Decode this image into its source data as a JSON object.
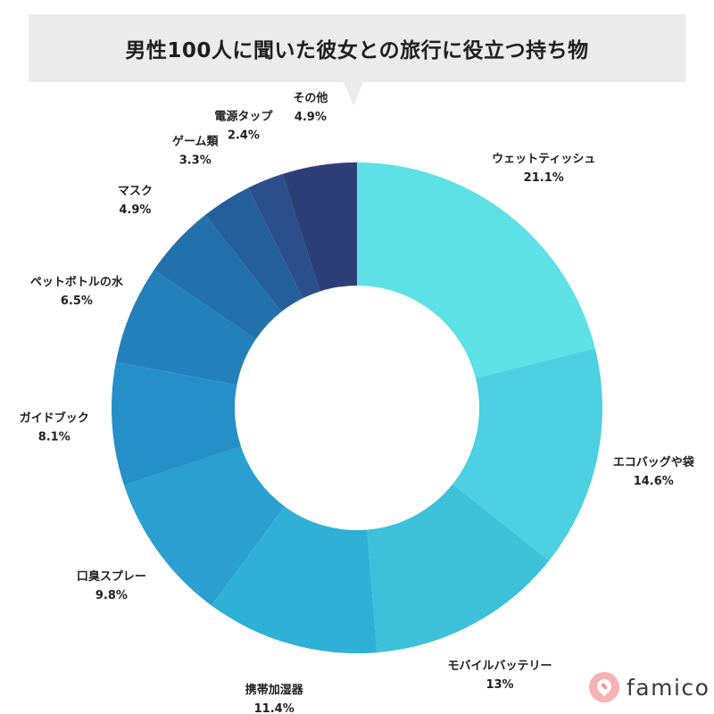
{
  "title": "男性100人に聞いた彼女との旅行に役立つ持ち物",
  "brand": {
    "name": "famico",
    "color": "#f6b3b1"
  },
  "chart_data": {
    "type": "pie",
    "variant": "donut",
    "unit": "%",
    "title": "男性100人に聞いた彼女との旅行に役立つ持ち物",
    "slices": [
      {
        "label": "ウェットティッシュ",
        "value": 21.1,
        "value_label": "21.1%",
        "color": "#5de0e6"
      },
      {
        "label": "エコバッグや袋",
        "value": 14.6,
        "value_label": "14.6%",
        "color": "#4dd0e1"
      },
      {
        "label": "モバイルバッテリー",
        "value": 13,
        "value_label": "13%",
        "color": "#3cc1d9"
      },
      {
        "label": "携帯加湿器",
        "value": 11.4,
        "value_label": "11.4%",
        "color": "#2fb0d6"
      },
      {
        "label": "口臭スプレー",
        "value": 9.8,
        "value_label": "9.8%",
        "color": "#2a9fd0"
      },
      {
        "label": "ガイドブック",
        "value": 8.1,
        "value_label": "8.1%",
        "color": "#2590c7"
      },
      {
        "label": "ペットボトルの水",
        "value": 6.5,
        "value_label": "6.5%",
        "color": "#2380ba"
      },
      {
        "label": "マスク",
        "value": 4.9,
        "value_label": "4.9%",
        "color": "#2270ac"
      },
      {
        "label": "ゲーム類",
        "value": 3.3,
        "value_label": "3.3%",
        "color": "#255f9b"
      },
      {
        "label": "電源タップ",
        "value": 2.4,
        "value_label": "2.4%",
        "color": "#2a4f8a"
      },
      {
        "label": "その他",
        "value": 4.9,
        "value_label": "4.9%",
        "color": "#2e3f78"
      }
    ]
  }
}
